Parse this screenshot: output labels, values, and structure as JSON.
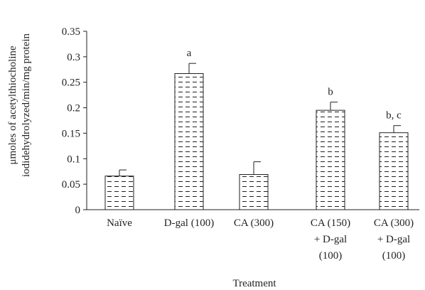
{
  "chart_data": {
    "type": "bar",
    "categories": [
      [
        "Naïve"
      ],
      [
        "D-gal (100)"
      ],
      [
        "CA (300)"
      ],
      [
        "CA (150)",
        "+ D-gal",
        "(100)"
      ],
      [
        "CA (300)",
        "+ D-gal",
        "(100)"
      ]
    ],
    "values": [
      0.066,
      0.267,
      0.069,
      0.195,
      0.151
    ],
    "errors": [
      0.012,
      0.02,
      0.025,
      0.016,
      0.014
    ],
    "annotations": [
      "",
      "a",
      "",
      "b",
      "b, c"
    ],
    "xlabel": "Treatment",
    "ylabel": [
      "μmoles of acetylthiocholine",
      "iodidehydrolyzed/min/mg protein"
    ],
    "ylim": [
      0,
      0.35
    ],
    "yticks": [
      "0",
      "0.05",
      "0.1",
      "0.15",
      "0.2",
      "0.25",
      "0.3",
      "0.35"
    ],
    "bar_fill": "#ffffff",
    "bar_pattern": "horizontal-dashes",
    "line_color": "#231f20",
    "grid": false,
    "legend": "none"
  }
}
